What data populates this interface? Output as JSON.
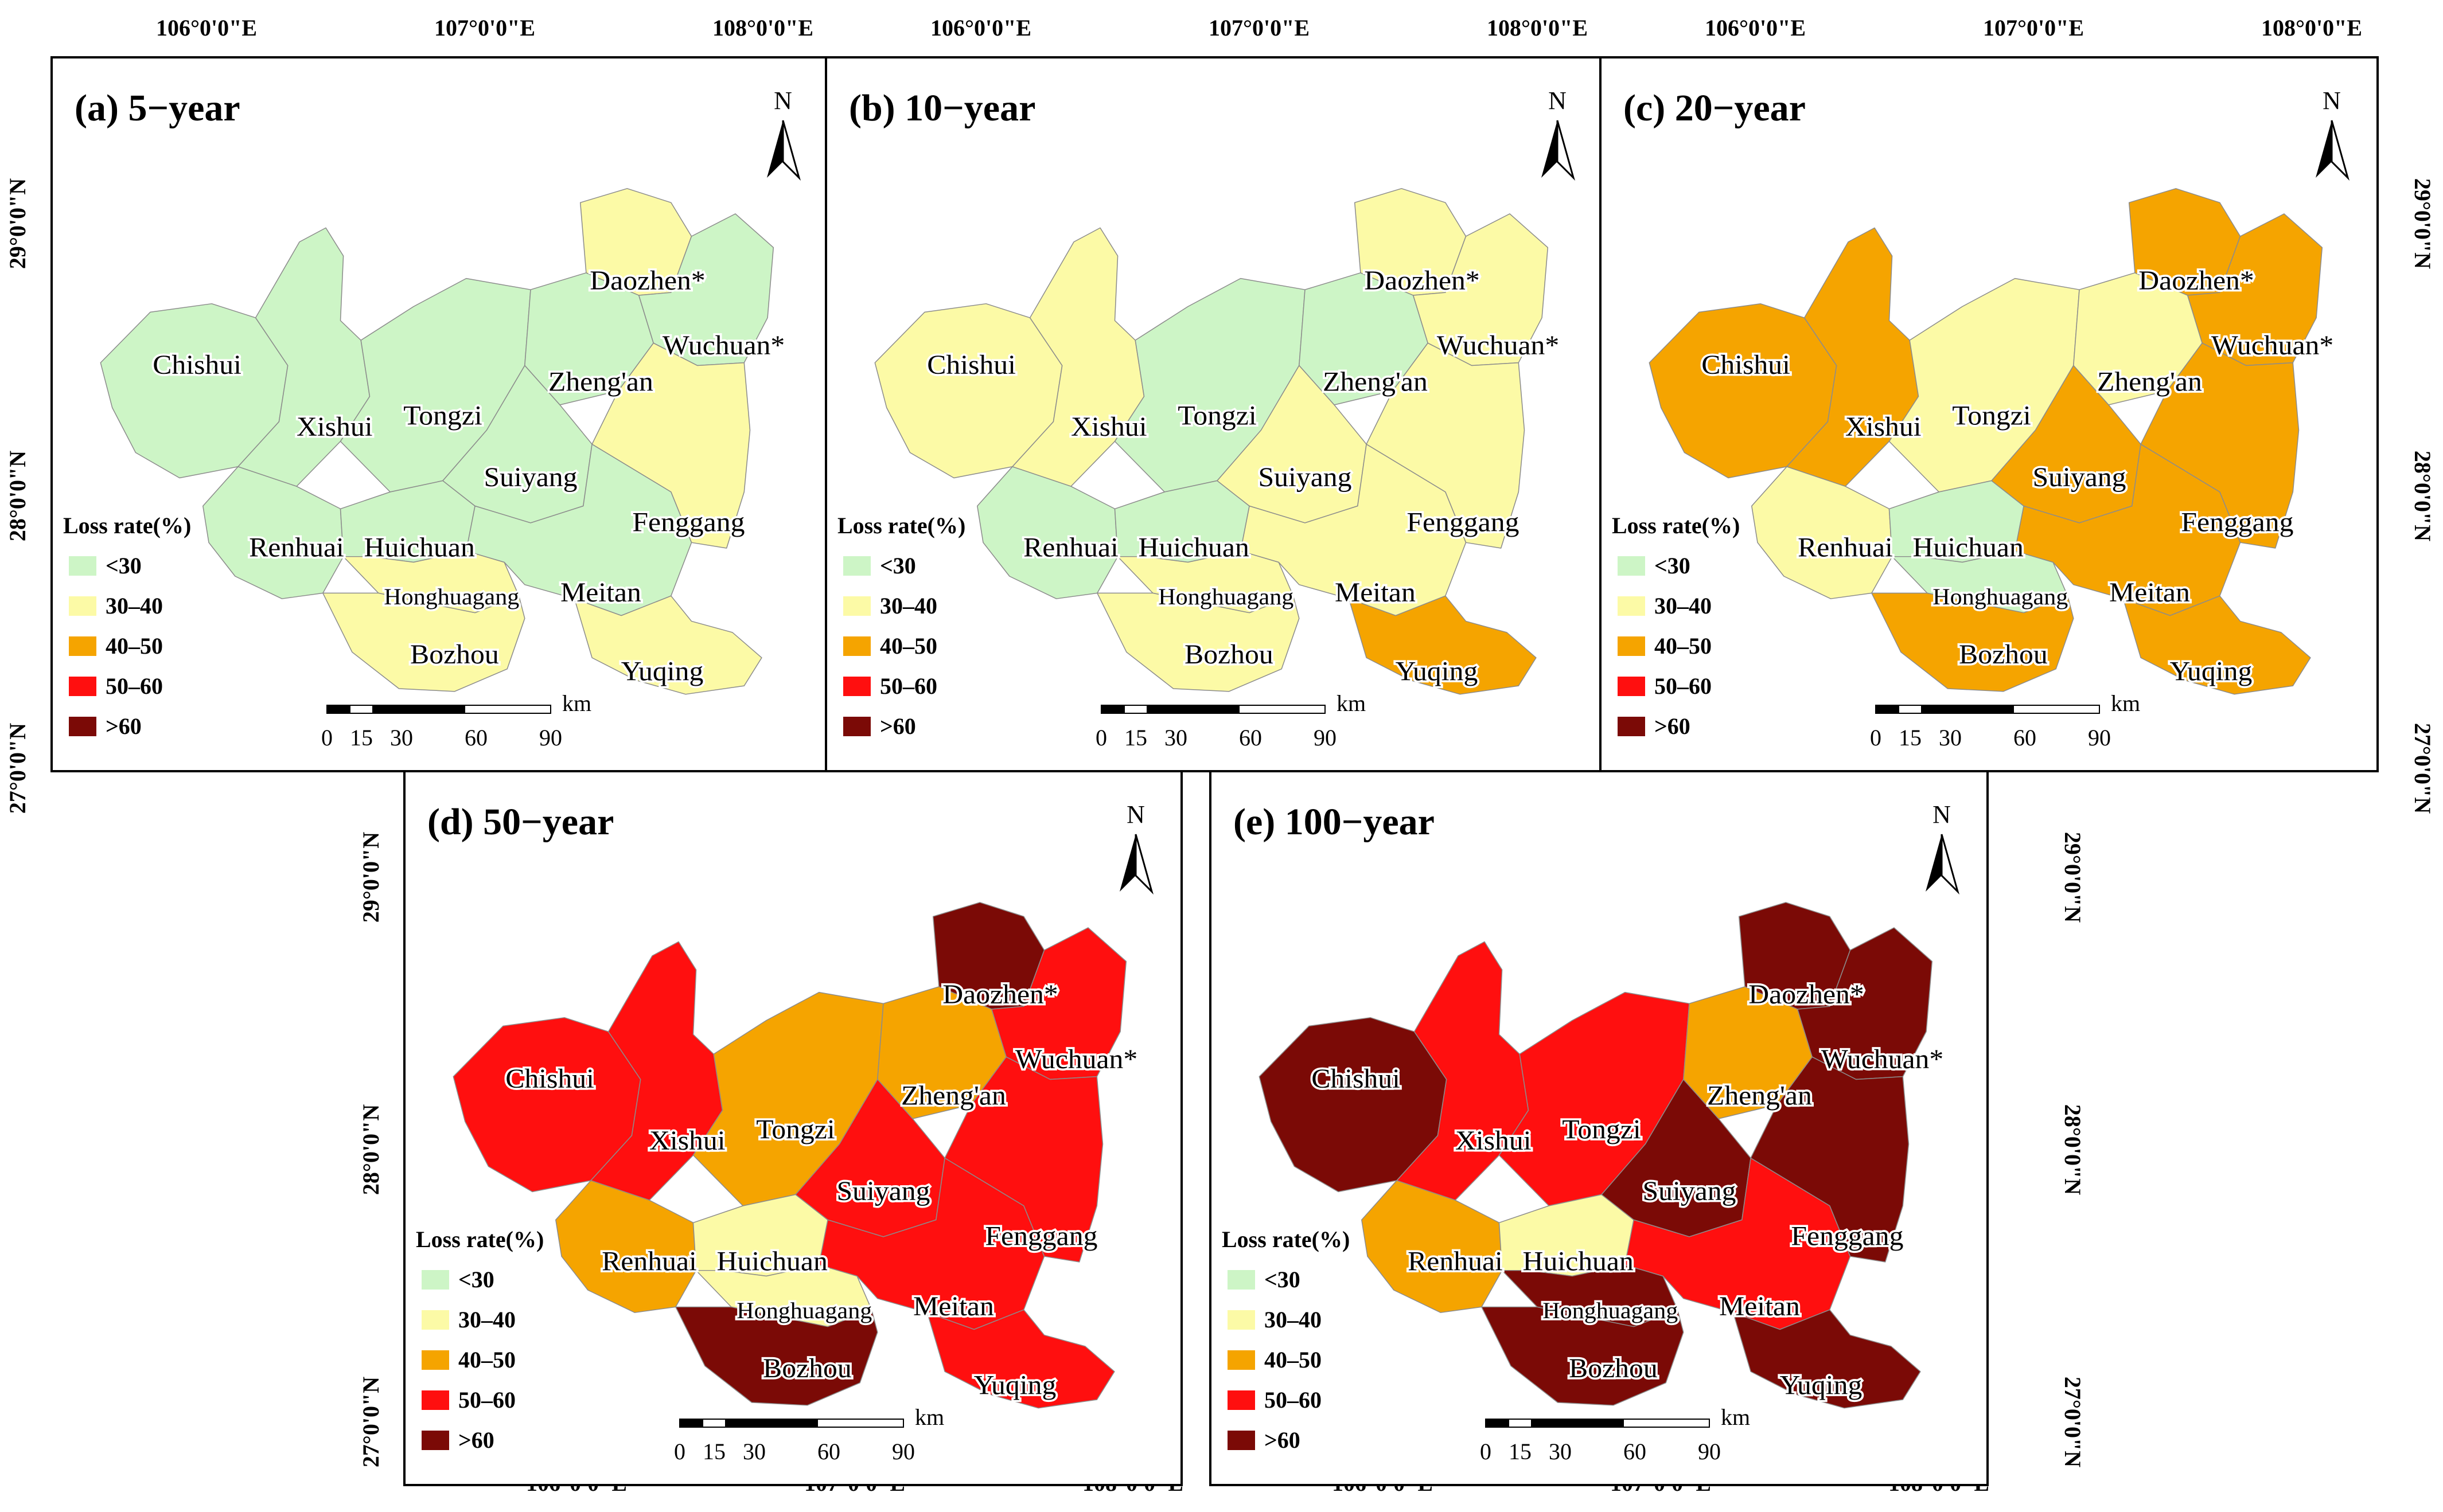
{
  "legend_title": "Loss rate(%)",
  "legend_classes": [
    {
      "label": "<30",
      "color": "#cdf5c6"
    },
    {
      "label": "30–40",
      "color": "#fcfaa6"
    },
    {
      "label": "40–50",
      "color": "#f5a400"
    },
    {
      "label": "50–60",
      "color": "#ff0f0f"
    },
    {
      "label": ">60",
      "color": "#7b0a06"
    }
  ],
  "north_label": "N",
  "scale_unit": "km",
  "scale_ticks": [
    "0",
    "15",
    "30",
    "60",
    "90"
  ],
  "lon_ticks": [
    "106°0'0\"E",
    "107°0'0\"E",
    "108°0'0\"E"
  ],
  "lat_ticks": [
    "29°0'0\"N",
    "28°0'0\"N",
    "27°0'0\"N"
  ],
  "county_names": [
    "Chishui",
    "Xishui",
    "Tongzi",
    "Zheng'an",
    "Daozhen*",
    "Wuchuan*",
    "Renhuai",
    "Huichuan",
    "Honghuagang",
    "Suiyang",
    "Fenggang",
    "Meitan",
    "Bozhou",
    "Yuqing"
  ],
  "panels": [
    {
      "title": "(a)  5−year",
      "classes": {
        "Chishui": "<30",
        "Xishui": "<30",
        "Tongzi": "<30",
        "Zheng'an": "<30",
        "Daozhen*": "30–40",
        "Wuchuan*": "<30",
        "Renhuai": "<30",
        "Huichuan": "<30",
        "Honghuagang": "30–40",
        "Suiyang": "<30",
        "Fenggang": "30–40",
        "Meitan": "<30",
        "Bozhou": "30–40",
        "Yuqing": "30–40"
      }
    },
    {
      "title": "(b)  10−year",
      "classes": {
        "Chishui": "30–40",
        "Xishui": "30–40",
        "Tongzi": "<30",
        "Zheng'an": "<30",
        "Daozhen*": "30–40",
        "Wuchuan*": "30–40",
        "Renhuai": "<30",
        "Huichuan": "<30",
        "Honghuagang": "30–40",
        "Suiyang": "30–40",
        "Fenggang": "30–40",
        "Meitan": "30–40",
        "Bozhou": "30–40",
        "Yuqing": "40–50"
      }
    },
    {
      "title": "(c)  20−year",
      "classes": {
        "Chishui": "40–50",
        "Xishui": "40–50",
        "Tongzi": "30–40",
        "Zheng'an": "30–40",
        "Daozhen*": "40–50",
        "Wuchuan*": "40–50",
        "Renhuai": "30–40",
        "Huichuan": "<30",
        "Honghuagang": "<30",
        "Suiyang": "40–50",
        "Fenggang": "40–50",
        "Meitan": "40–50",
        "Bozhou": "40–50",
        "Yuqing": "40–50"
      }
    },
    {
      "title": "(d)  50−year",
      "classes": {
        "Chishui": "50–60",
        "Xishui": "50–60",
        "Tongzi": "40–50",
        "Zheng'an": "40–50",
        "Daozhen*": ">60",
        "Wuchuan*": "50–60",
        "Renhuai": "40–50",
        "Huichuan": "30–40",
        "Honghuagang": "30–40",
        "Suiyang": "50–60",
        "Fenggang": "50–60",
        "Meitan": "50–60",
        "Bozhou": ">60",
        "Yuqing": "50–60"
      }
    },
    {
      "title": "(e)  100−year",
      "classes": {
        "Chishui": ">60",
        "Xishui": "50–60",
        "Tongzi": "50–60",
        "Zheng'an": "40–50",
        "Daozhen*": ">60",
        "Wuchuan*": ">60",
        "Renhuai": "40–50",
        "Huichuan": "30–40",
        "Honghuagang": ">60",
        "Suiyang": ">60",
        "Fenggang": ">60",
        "Meitan": "50–60",
        "Bozhou": ">60",
        "Yuqing": ">60"
      }
    }
  ]
}
